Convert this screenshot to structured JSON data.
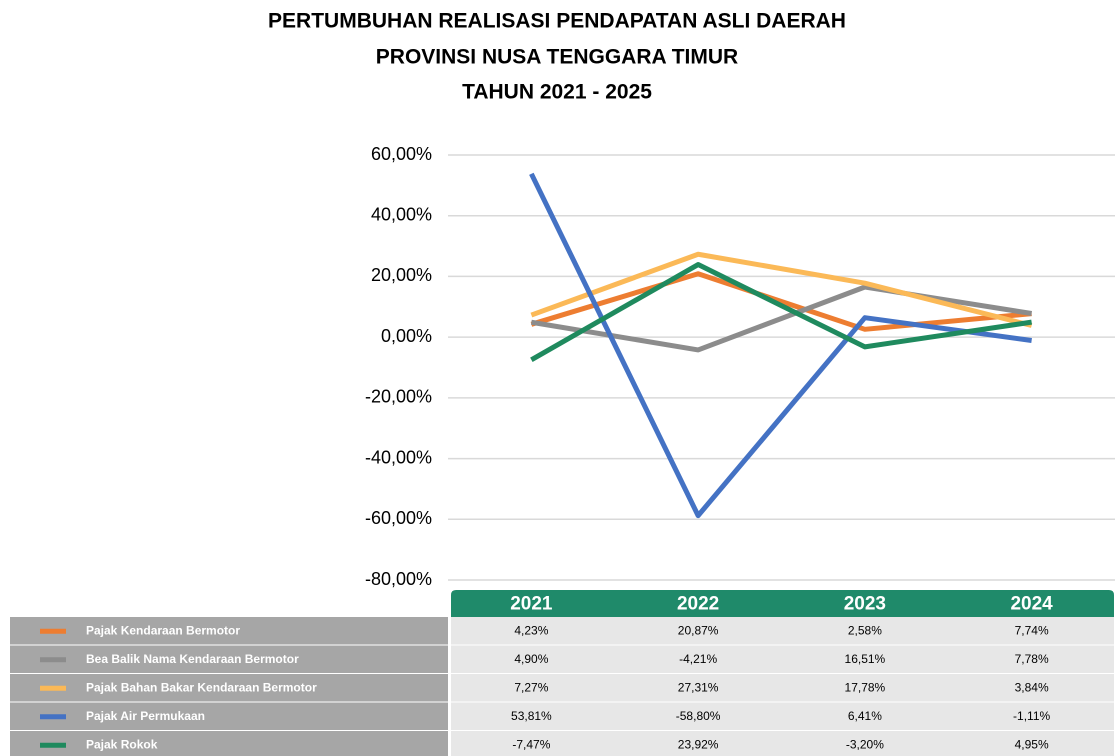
{
  "chart_data": {
    "type": "line",
    "title": [
      "PERTUMBUHAN REALISASI PENDAPATAN ASLI DAERAH",
      "PROVINSI NUSA TENGGARA TIMUR",
      "TAHUN 2021 - 2025"
    ],
    "categories": [
      "2021",
      "2022",
      "2023",
      "2024"
    ],
    "ylim": [
      -80,
      60
    ],
    "yticks": [
      {
        "value": -80,
        "label": "-80,00%"
      },
      {
        "value": -60,
        "label": "-60,00%"
      },
      {
        "value": -40,
        "label": "-40,00%"
      },
      {
        "value": -20,
        "label": "-20,00%"
      },
      {
        "value": 0,
        "label": "0,00%"
      },
      {
        "value": 20,
        "label": "20,00%"
      },
      {
        "value": 40,
        "label": "40,00%"
      },
      {
        "value": 60,
        "label": "60,00%"
      }
    ],
    "grid": true,
    "series": [
      {
        "name": "Pajak Kendaraan Bermotor",
        "color": "#ed7d31",
        "values": [
          4.23,
          20.87,
          2.58,
          7.74
        ],
        "value_labels": [
          "4,23%",
          "20,87%",
          "2,58%",
          "7,74%"
        ]
      },
      {
        "name": "Bea Balik Nama Kendaraan Bermotor",
        "color": "#8c8c8c",
        "values": [
          4.9,
          -4.21,
          16.51,
          7.78
        ],
        "value_labels": [
          "4,90%",
          "-4,21%",
          "16,51%",
          "7,78%"
        ]
      },
      {
        "name": "Pajak Bahan Bakar Kendaraan Bermotor",
        "color": "#fbb957",
        "values": [
          7.27,
          27.31,
          17.78,
          3.84
        ],
        "value_labels": [
          "7,27%",
          "27,31%",
          "17,78%",
          "3,84%"
        ]
      },
      {
        "name": "Pajak Air Permukaan",
        "color": "#4472c4",
        "values": [
          53.81,
          -58.8,
          6.41,
          -1.11
        ],
        "value_labels": [
          "53,81%",
          "-58,80%",
          "6,41%",
          "-1,11%"
        ]
      },
      {
        "name": "Pajak Rokok",
        "color": "#1f8a5e",
        "values": [
          -7.47,
          23.92,
          -3.2,
          4.95
        ],
        "value_labels": [
          "-7,47%",
          "23,92%",
          "-3,20%",
          "4,95%"
        ]
      }
    ]
  }
}
